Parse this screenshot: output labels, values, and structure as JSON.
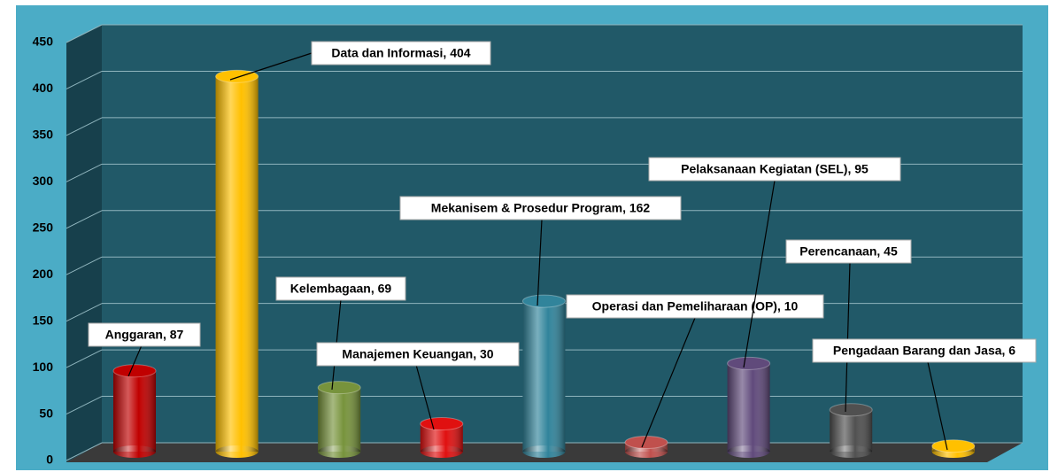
{
  "chart_data": {
    "type": "bar",
    "values": [
      87,
      404,
      69,
      30,
      162,
      10,
      95,
      45,
      6
    ],
    "value_labels": [
      "Anggaran, 87",
      "Data dan Informasi, 404",
      "Kelembagaan, 69",
      "Manajemen Keuangan, 30",
      "Mekanisem & Prosedur Program, 162",
      "Operasi dan Pemeliharaan (OP), 10",
      "Pelaksanaan Kegiatan (SEL), 95",
      "Perencanaan, 45",
      "Pengadaan Barang dan Jasa, 6"
    ],
    "colors": [
      "#c00000",
      "#ffc000",
      "#77933c",
      "#e01010",
      "#31849b",
      "#c0504d",
      "#604a7b",
      "#505050",
      "#ffc000"
    ],
    "ylim": [
      0,
      450
    ],
    "yticks": [
      0,
      50,
      100,
      150,
      200,
      250,
      300,
      350,
      400,
      450
    ],
    "grid": true
  }
}
